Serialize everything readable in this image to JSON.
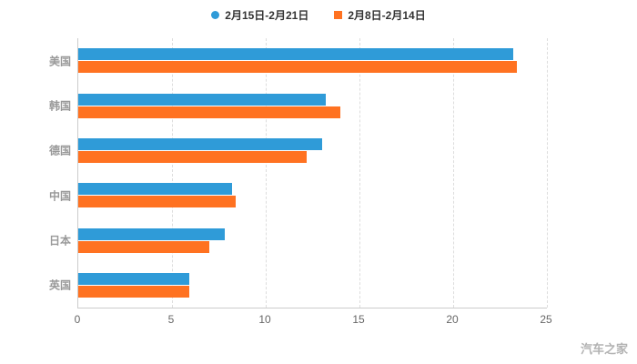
{
  "legend": {
    "items": [
      {
        "label": "2月15日-2月21日",
        "color": "#2f9bd8",
        "marker": "circle"
      },
      {
        "label": "2月8日-2月14日",
        "color": "#ff7221",
        "marker": "square"
      }
    ]
  },
  "watermark": "汽车之家",
  "chart_data": {
    "type": "bar",
    "orientation": "horizontal",
    "title": "",
    "categories": [
      "美国",
      "韩国",
      "德国",
      "中国",
      "日本",
      "英国"
    ],
    "series": [
      {
        "name": "2月15日-2月21日",
        "color": "#2f9bd8",
        "values": [
          23.2,
          13.2,
          13.0,
          8.2,
          7.8,
          5.9
        ]
      },
      {
        "name": "2月8日-2月14日",
        "color": "#ff7221",
        "values": [
          23.4,
          14.0,
          12.2,
          8.4,
          7.0,
          5.9
        ]
      }
    ],
    "xlim": [
      0,
      25
    ],
    "xticks": [
      0,
      5,
      10,
      15,
      20,
      25
    ],
    "grid": "dashed-vertical",
    "legend_position": "top-center"
  }
}
